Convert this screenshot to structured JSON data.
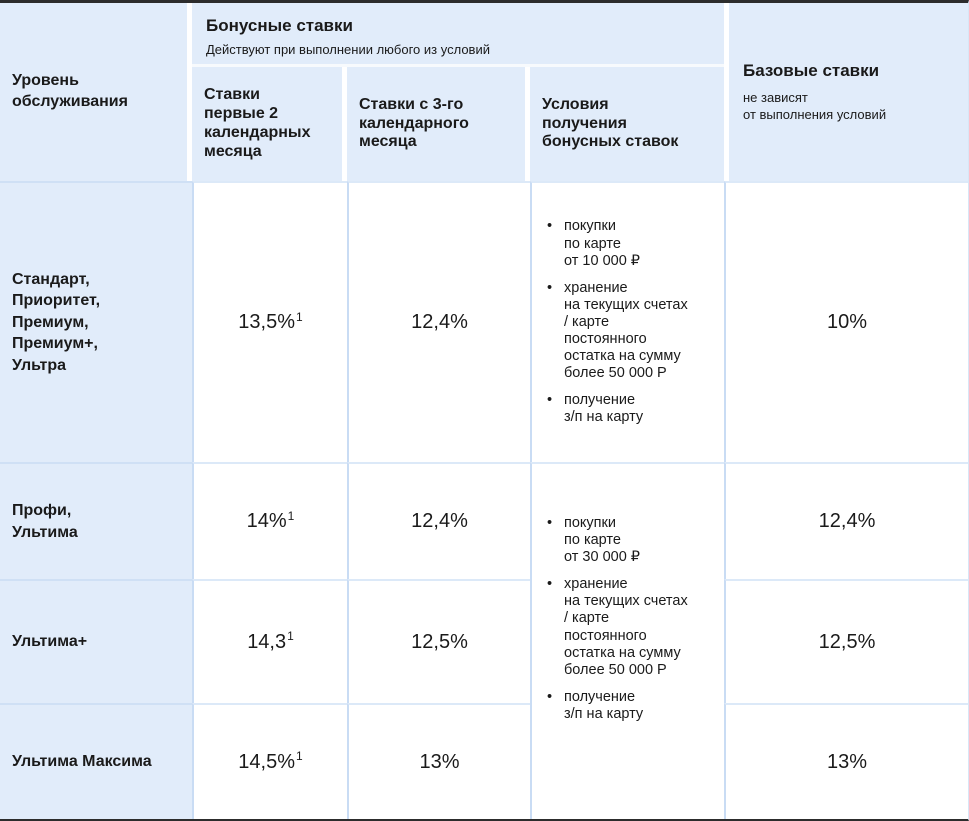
{
  "colors": {
    "header_fill": "#e1ecfa",
    "grid_line": "#c9dcf4",
    "grid_line_light": "#dce9f8",
    "frame_line": "#2c2c2c",
    "text": "#1a1a1a"
  },
  "bullet": "•",
  "table": {
    "header": {
      "level_title": "Уровень\nобслуживания",
      "bonus_title": "Бонусные ставки",
      "bonus_subtitle": "Действуют при выполнении любого из условий",
      "col_rate_first": "Ставки\nпервые 2\nкалендарных\nмесяца",
      "col_rate_after": "Ставки с 3-го\nкалендарного\nмесяца",
      "col_conditions": "Условия\nполучения\nбонусных ставок",
      "base_title": "Базовые ставки",
      "base_subtitle": "не зависят\nот выполнения условий"
    },
    "rows": [
      {
        "level": "Стандарт,\nПриоритет,\nПремиум,\nПремиум+,\nУльтра",
        "rate_first": "13,5%",
        "rate_first_sup": "1",
        "rate_after": "12,4%",
        "base": "10%"
      },
      {
        "level": "Профи,\nУльтима",
        "rate_first": "14%",
        "rate_first_sup": "1",
        "rate_after": "12,4%",
        "base": "12,4%"
      },
      {
        "level": "Ультима+",
        "rate_first": "14,3",
        "rate_first_sup": "1",
        "rate_after": "12,5%",
        "base": "12,5%"
      },
      {
        "level": "Ультима Максима",
        "rate_first": "14,5%",
        "rate_first_sup": "1",
        "rate_after": "13%",
        "base": "13%"
      }
    ],
    "conditions_row1": {
      "items": [
        "покупки\nпо карте\nот 10 000 ₽",
        "хранение\nна текущих счетах\n/ карте\nпостоянного\nостатка на сумму\nболее 50 000 Р",
        "получение\nз/п на карту"
      ]
    },
    "conditions_merged": {
      "items": [
        "покупки\nпо карте\nот 30 000 ₽",
        "хранение\nна текущих счетах\n/ карте\nпостоянного\nостатка на сумму\nболее 50 000 Р",
        "получение\nз/п на карту"
      ]
    }
  }
}
